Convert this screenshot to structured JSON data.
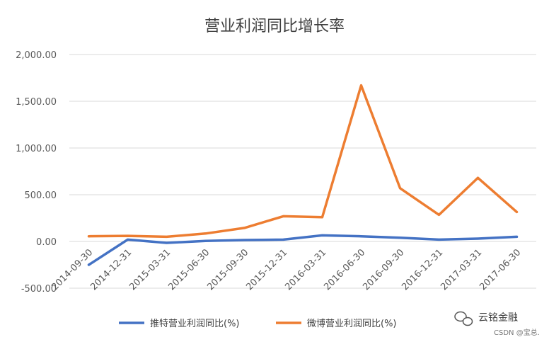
{
  "chart_data": {
    "type": "line",
    "title": "营业利润同比增长率",
    "categories": [
      "2014-09-30",
      "2014-12-31",
      "2015-03-31",
      "2015-06-30",
      "2015-09-30",
      "2015-12-31",
      "2016-03-31",
      "2016-06-30",
      "2016-09-30",
      "2016-12-31",
      "2017-03-31",
      "2017-06-30"
    ],
    "x_tick_labels": [
      "2014-09-30",
      "2014-12-31",
      "2015-03-31",
      "2015-06-30",
      "2015-09-30",
      "2015-12-31",
      "2016-03-31",
      "2016-06-30",
      "2016-09-30",
      "2016-12-31",
      "2017-03-31",
      "2017-06-30"
    ],
    "y_tick_values": [
      2000,
      1500,
      1000,
      500,
      0,
      -500
    ],
    "y_tick_labels": [
      "2,000.00",
      "1,500.00",
      "1,000.00",
      "500.00",
      "0.00",
      "-500.00"
    ],
    "ylim": [
      -500,
      2000
    ],
    "grid": true,
    "legend_position": "bottom",
    "series": [
      {
        "name": "推特营业利润同比(%)",
        "color": "#4472c4",
        "values": [
          -250,
          20,
          -15,
          5,
          15,
          20,
          65,
          55,
          40,
          20,
          30,
          50
        ]
      },
      {
        "name": "微博营业利润同比(%)",
        "color": "#ed7d31",
        "values": [
          55,
          60,
          50,
          85,
          145,
          270,
          260,
          1670,
          570,
          285,
          680,
          315
        ]
      }
    ]
  },
  "watermark": {
    "brand": "云铭金融",
    "icon": "wechat-icon",
    "source": "CSDN @宝总."
  }
}
